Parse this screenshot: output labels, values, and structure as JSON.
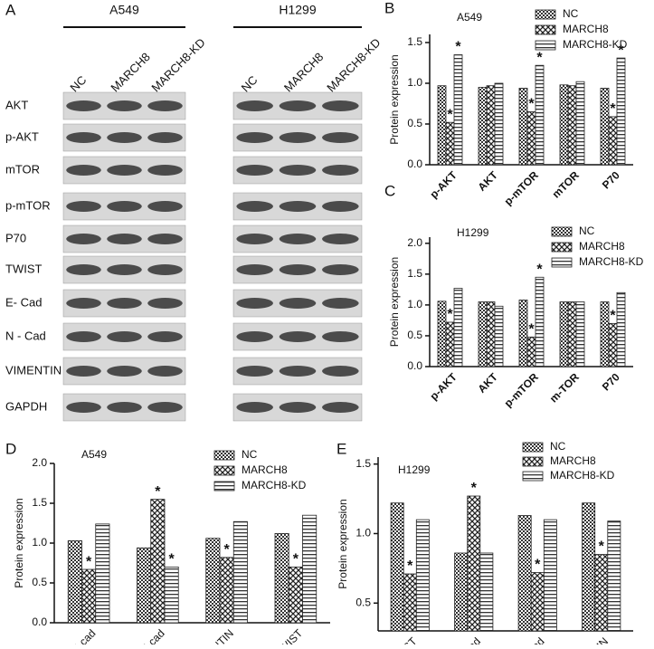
{
  "panel_a": {
    "label": "A",
    "groups": [
      {
        "name": "A549",
        "lanes": [
          "NC",
          "MARCH8",
          "MARCH8-KD"
        ]
      },
      {
        "name": "H1299",
        "lanes": [
          "NC",
          "MARCH8",
          "MARCH8-KD"
        ]
      }
    ],
    "rows": [
      "AKT",
      "p-AKT",
      "mTOR",
      "p-mTOR",
      "P70",
      "TWIST",
      "E- Cad",
      "N - Cad",
      "VIMENTIN",
      "GAPDH"
    ]
  },
  "chart_data": [
    {
      "type": "bar",
      "panel": "B",
      "title": "A549",
      "y_label": "Protein expression",
      "category_weight": "bold",
      "categories": [
        "p-AKT",
        "AKT",
        "p-mTOR",
        "mTOR",
        "P70"
      ],
      "series": [
        {
          "name": "NC",
          "values": [
            0.97,
            0.95,
            0.94,
            0.98,
            0.94
          ],
          "significance": [
            null,
            null,
            null,
            null,
            null
          ]
        },
        {
          "name": "MARCH8",
          "values": [
            0.52,
            0.97,
            0.65,
            0.97,
            0.59
          ],
          "significance": [
            "*",
            null,
            "*",
            null,
            "*"
          ]
        },
        {
          "name": "MARCH8-KD",
          "values": [
            1.35,
            1.0,
            1.22,
            1.02,
            1.31
          ],
          "significance": [
            "*",
            null,
            "*",
            null,
            "*"
          ]
        }
      ],
      "ylim": [
        0,
        1.6
      ],
      "yticks": [
        {
          "value": 0,
          "label": "0.0"
        },
        {
          "value": 0.5,
          "label": "0.5"
        },
        {
          "value": 1,
          "label": "1.0"
        },
        {
          "value": 1.5,
          "label": "1.5"
        }
      ]
    },
    {
      "type": "bar",
      "panel": "C",
      "title": "H1299",
      "y_label": "Protein expression",
      "category_weight": "bold",
      "categories": [
        "p-AKT",
        "AKT",
        "p-mTOR",
        "m-TOR",
        "P70"
      ],
      "series": [
        {
          "name": "NC",
          "values": [
            1.06,
            1.05,
            1.08,
            1.05,
            1.05
          ],
          "significance": [
            null,
            null,
            null,
            null,
            null
          ]
        },
        {
          "name": "MARCH8",
          "values": [
            0.72,
            1.05,
            0.48,
            1.05,
            0.7
          ],
          "significance": [
            "*",
            null,
            "*",
            null,
            "*"
          ]
        },
        {
          "name": "MARCH8-KD",
          "values": [
            1.27,
            0.98,
            1.45,
            1.05,
            1.2
          ],
          "significance": [
            null,
            null,
            "*",
            null,
            null
          ]
        }
      ],
      "ylim": [
        0,
        2.1
      ],
      "yticks": [
        {
          "value": 0,
          "label": "0.0"
        },
        {
          "value": 0.5,
          "label": "0.5"
        },
        {
          "value": 1,
          "label": "1.0"
        },
        {
          "value": 1.5,
          "label": "1.5"
        },
        {
          "value": 2,
          "label": "2.0"
        }
      ]
    },
    {
      "type": "bar",
      "panel": "D",
      "title": "A549",
      "y_label": "Protein expression",
      "category_weight": "normal",
      "categories": [
        "N-cad",
        "E-cad",
        "VIMENTIN",
        "TWIST"
      ],
      "series": [
        {
          "name": "NC",
          "values": [
            1.03,
            0.94,
            1.06,
            1.12
          ],
          "significance": [
            null,
            null,
            null,
            null
          ]
        },
        {
          "name": "MARCH8",
          "values": [
            0.67,
            1.55,
            0.82,
            0.7
          ],
          "significance": [
            "*",
            "*",
            "*",
            "*"
          ]
        },
        {
          "name": "MARCH8-KD",
          "values": [
            1.24,
            0.7,
            1.27,
            1.35
          ],
          "significance": [
            null,
            "*",
            null,
            null
          ]
        }
      ],
      "ylim": [
        0,
        2.0
      ],
      "yticks": [
        {
          "value": 0,
          "label": "0.0"
        },
        {
          "value": 0.5,
          "label": "0.5"
        },
        {
          "value": 1,
          "label": "1.0"
        },
        {
          "value": 1.5,
          "label": "1.5"
        },
        {
          "value": 2,
          "label": "2.0"
        }
      ]
    },
    {
      "type": "bar",
      "panel": "E",
      "title": "H1299",
      "y_label": "Protein expression",
      "category_weight": "normal",
      "categories": [
        "TWIST",
        "E-cad",
        "N-cad",
        "VIMENTIN"
      ],
      "series": [
        {
          "name": "NC",
          "values": [
            1.22,
            0.86,
            1.13,
            1.22
          ],
          "significance": [
            null,
            null,
            null,
            null
          ]
        },
        {
          "name": "MARCH8",
          "values": [
            0.71,
            1.27,
            0.72,
            0.85
          ],
          "significance": [
            "*",
            "*",
            "*",
            "*"
          ]
        },
        {
          "name": "MARCH8-KD",
          "values": [
            1.1,
            0.86,
            1.1,
            1.09
          ],
          "significance": [
            null,
            null,
            null,
            null
          ]
        }
      ],
      "ylim": [
        0.3,
        1.55
      ],
      "yticks": [
        {
          "value": 0.5,
          "label": "0.5"
        },
        {
          "value": 1,
          "label": "1.0"
        },
        {
          "value": 1.5,
          "label": "1.5"
        }
      ]
    }
  ]
}
